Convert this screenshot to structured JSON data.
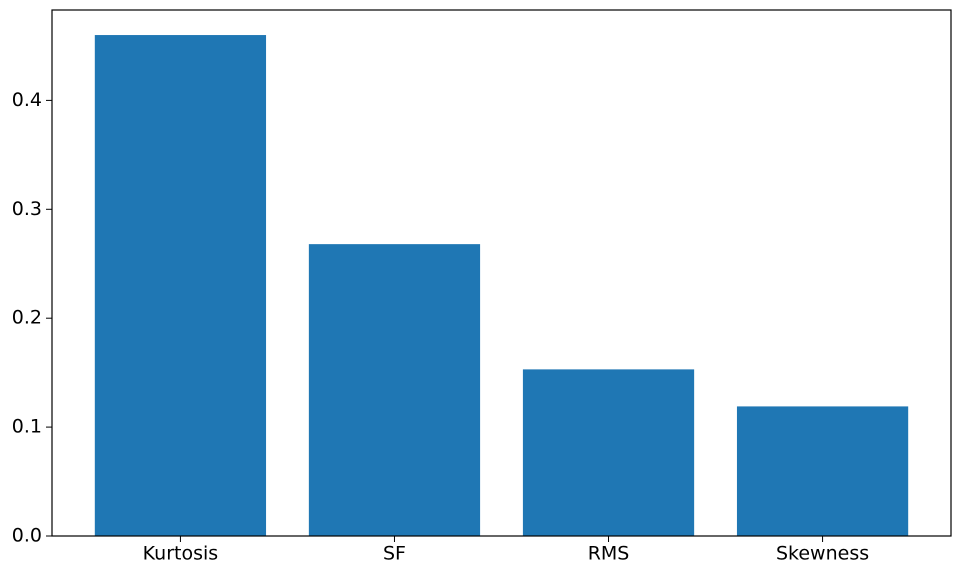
{
  "chart_data": {
    "type": "bar",
    "categories": [
      "Kurtosis",
      "SF",
      "RMS",
      "Skewness"
    ],
    "values": [
      0.46,
      0.268,
      0.153,
      0.119
    ],
    "color": "#1f77b4",
    "ylim": [
      0,
      0.483
    ],
    "yticks": [
      {
        "value": 0,
        "label": "0.0"
      },
      0.1,
      0.2,
      0.3,
      0.4
    ],
    "grid": false
  }
}
